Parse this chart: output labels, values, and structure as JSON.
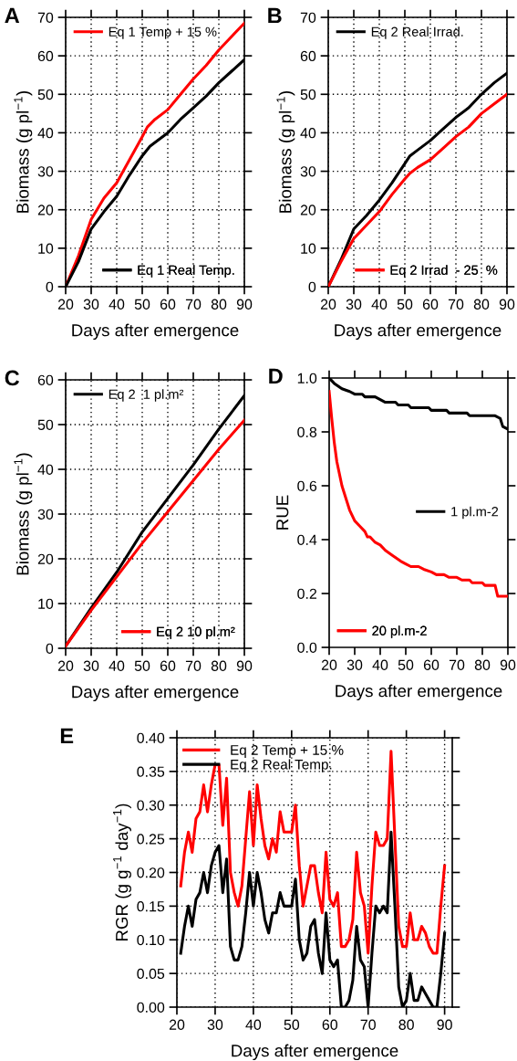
{
  "chart_data": [
    {
      "type": "line",
      "title": "A",
      "xlabel": "Days after emergence",
      "ylabel": "Biomass (g pl$^{−1}$)",
      "xlim": [
        20,
        90
      ],
      "ylim": [
        0,
        70
      ],
      "xticks": [
        20,
        30,
        40,
        50,
        60,
        70,
        80,
        90
      ],
      "yticks": [
        0,
        10,
        20,
        30,
        40,
        50,
        60,
        70
      ],
      "grid": true,
      "legend": [
        "top left",
        "bottom right"
      ],
      "series": [
        {
          "name": "Eq 1 Temp + 15 %",
          "color": "#ff0000",
          "x": [
            20,
            25,
            30,
            35,
            40,
            45,
            50,
            52,
            55,
            60,
            65,
            70,
            75,
            80,
            85,
            90
          ],
          "values": [
            0,
            8,
            17.5,
            23,
            27,
            33,
            39,
            41.5,
            43.5,
            46,
            50,
            54,
            57.5,
            61.5,
            65,
            68.5
          ]
        },
        {
          "name": "Eq 1 Real Temp.",
          "color": "#000000",
          "x": [
            20,
            25,
            30,
            35,
            40,
            45,
            50,
            53,
            55,
            60,
            65,
            70,
            75,
            80,
            85,
            90
          ],
          "values": [
            0,
            6.5,
            15,
            19.5,
            23.5,
            29,
            34,
            36.5,
            37.5,
            40,
            43.5,
            46.5,
            49.5,
            53,
            56,
            59
          ]
        }
      ]
    },
    {
      "type": "line",
      "title": "B",
      "xlabel": "Days after emergence",
      "ylabel": "Biomass (g pl$^{−1}$)",
      "xlim": [
        20,
        90
      ],
      "ylim": [
        0,
        70
      ],
      "xticks": [
        20,
        30,
        40,
        50,
        60,
        70,
        80,
        90
      ],
      "yticks": [
        0,
        10,
        20,
        30,
        40,
        50,
        60,
        70
      ],
      "grid": true,
      "legend": [
        "top left",
        "bottom right"
      ],
      "series": [
        {
          "name": "Eq 2 Real Irrad.",
          "color": "#000000",
          "x": [
            20,
            25,
            30,
            35,
            40,
            45,
            50,
            52,
            55,
            60,
            65,
            70,
            75,
            80,
            85,
            90
          ],
          "values": [
            0,
            7,
            15,
            18.5,
            22.5,
            27,
            32,
            34,
            35.5,
            38,
            41,
            44,
            46.5,
            50,
            53,
            55.5
          ]
        },
        {
          "name": "Eq 2 Irrad  - 25  %",
          "color": "#ff0000",
          "x": [
            20,
            25,
            30,
            35,
            40,
            45,
            50,
            52,
            55,
            60,
            65,
            70,
            75,
            80,
            85,
            90
          ],
          "values": [
            0,
            6.5,
            12.5,
            16,
            19.5,
            24,
            28,
            29.5,
            31,
            33,
            36,
            39,
            41.5,
            45,
            47.5,
            50
          ]
        }
      ]
    },
    {
      "type": "line",
      "title": "C",
      "xlabel": "Days after emergence",
      "ylabel": "Biomass (g pl$^{−1}$)",
      "xlim": [
        20,
        90
      ],
      "ylim": [
        0,
        60
      ],
      "xticks": [
        20,
        30,
        40,
        50,
        60,
        70,
        80,
        90
      ],
      "yticks": [
        0,
        10,
        20,
        30,
        40,
        50,
        60
      ],
      "grid": true,
      "legend": [
        "top left",
        "bottom right"
      ],
      "series": [
        {
          "name": "Eq 2  1 pl.m²",
          "color": "#000000",
          "x": [
            20,
            30,
            40,
            50,
            60,
            70,
            80,
            90
          ],
          "values": [
            0.5,
            9,
            17,
            26,
            33.5,
            41,
            49,
            56.5
          ]
        },
        {
          "name": "Eq 2 10 pl.m²",
          "color": "#ff0000",
          "x": [
            20,
            30,
            40,
            50,
            60,
            70,
            80,
            90
          ],
          "values": [
            0.5,
            8.5,
            16,
            23.5,
            30.5,
            37.5,
            44.5,
            51
          ]
        }
      ]
    },
    {
      "type": "line",
      "title": "D",
      "xlabel": "Days after emergence",
      "ylabel": "RUE",
      "xlim": [
        20,
        90
      ],
      "ylim": [
        0,
        1
      ],
      "xticks": [
        20,
        30,
        40,
        50,
        60,
        70,
        80,
        90
      ],
      "yticks": [
        {
          "value": 0,
          "label": "0.0"
        },
        0.2,
        0.4,
        0.6,
        0.8,
        {
          "value": 1,
          "label": "1.0"
        }
      ],
      "legend": [
        "center right",
        "bottom left"
      ],
      "series": [
        {
          "name": "1 pl.m-2",
          "color": "#000000",
          "x": [
            20,
            22,
            25,
            28,
            30,
            33,
            34,
            38,
            40,
            42,
            46,
            47,
            51,
            52,
            59,
            60,
            66,
            67,
            74,
            75,
            85,
            87,
            88,
            90
          ],
          "values": [
            1.0,
            0.98,
            0.96,
            0.95,
            0.94,
            0.94,
            0.93,
            0.93,
            0.92,
            0.91,
            0.91,
            0.9,
            0.9,
            0.89,
            0.89,
            0.88,
            0.88,
            0.87,
            0.87,
            0.86,
            0.86,
            0.85,
            0.82,
            0.81
          ]
        },
        {
          "name": "20 pl.m-2",
          "color": "#ff0000",
          "x": [
            20,
            21,
            22,
            23,
            25,
            27,
            28,
            30,
            32,
            34,
            35,
            36,
            38,
            40,
            42,
            45,
            48,
            50,
            52,
            55,
            57,
            60,
            62,
            65,
            67,
            70,
            72,
            75,
            76,
            80,
            81,
            85,
            86,
            90
          ],
          "values": [
            0.95,
            0.85,
            0.76,
            0.69,
            0.6,
            0.54,
            0.51,
            0.47,
            0.45,
            0.43,
            0.41,
            0.41,
            0.39,
            0.38,
            0.36,
            0.34,
            0.32,
            0.31,
            0.3,
            0.3,
            0.29,
            0.28,
            0.27,
            0.27,
            0.26,
            0.26,
            0.25,
            0.25,
            0.24,
            0.24,
            0.23,
            0.23,
            0.19,
            0.19
          ]
        }
      ]
    },
    {
      "type": "line",
      "title": "E",
      "xlabel": "Days after emergence",
      "ylabel": "RGR (g g$^{−1}$ day$^{−1}$)",
      "xlim": [
        20,
        92
      ],
      "ylim": [
        0,
        0.4
      ],
      "xticks": [
        20,
        30,
        40,
        50,
        60,
        70,
        80,
        90
      ],
      "yticks": [
        {
          "value": 0,
          "label": "0.00"
        },
        {
          "value": 0.05,
          "label": "0.05"
        },
        {
          "value": 0.1,
          "label": "0.10"
        },
        {
          "value": 0.15,
          "label": "0.15"
        },
        {
          "value": 0.2,
          "label": "0.20"
        },
        {
          "value": 0.25,
          "label": "0.25"
        },
        {
          "value": 0.3,
          "label": "0.30"
        },
        {
          "value": 0.35,
          "label": "0.35"
        },
        {
          "value": 0.4,
          "label": "0.40"
        }
      ],
      "grid": true,
      "legend": "top left",
      "x": [
        21,
        22,
        23,
        24,
        25,
        26,
        27,
        28,
        29,
        30,
        31,
        32,
        33,
        34,
        35,
        36,
        37,
        38,
        39,
        40,
        41,
        42,
        43,
        44,
        45,
        46,
        47,
        48,
        49,
        50,
        51,
        52,
        53,
        54,
        55,
        56,
        57,
        58,
        59,
        60,
        61,
        62,
        63,
        64,
        65,
        66,
        67,
        68,
        69,
        70,
        71,
        72,
        73,
        74,
        75,
        76,
        77,
        78,
        79,
        80,
        81,
        82,
        83,
        84,
        85,
        86,
        87,
        88,
        89,
        90
      ],
      "series": [
        {
          "name": "Eq 2 Temp + 15 %",
          "color": "#ff0000",
          "values": [
            0.18,
            0.23,
            0.26,
            0.23,
            0.28,
            0.29,
            0.33,
            0.29,
            0.33,
            0.36,
            0.36,
            0.27,
            0.34,
            0.2,
            0.17,
            0.15,
            0.18,
            0.25,
            0.32,
            0.24,
            0.33,
            0.28,
            0.24,
            0.22,
            0.25,
            0.23,
            0.29,
            0.26,
            0.26,
            0.26,
            0.3,
            0.21,
            0.15,
            0.18,
            0.21,
            0.21,
            0.17,
            0.14,
            0.23,
            0.16,
            0.15,
            0.17,
            0.09,
            0.09,
            0.1,
            0.13,
            0.23,
            0.17,
            0.15,
            0.08,
            0.18,
            0.26,
            0.24,
            0.24,
            0.25,
            0.38,
            0.25,
            0.12,
            0.09,
            0.09,
            0.14,
            0.1,
            0.1,
            0.12,
            0.11,
            0.09,
            0.08,
            0.08,
            0.15,
            0.21
          ]
        },
        {
          "name": "Eq 2 Real Temp.",
          "color": "#000000",
          "values": [
            0.08,
            0.12,
            0.15,
            0.12,
            0.16,
            0.17,
            0.2,
            0.17,
            0.21,
            0.23,
            0.24,
            0.17,
            0.22,
            0.09,
            0.07,
            0.07,
            0.09,
            0.14,
            0.2,
            0.15,
            0.2,
            0.17,
            0.13,
            0.11,
            0.14,
            0.14,
            0.17,
            0.15,
            0.15,
            0.15,
            0.19,
            0.1,
            0.07,
            0.08,
            0.12,
            0.13,
            0.08,
            0.05,
            0.14,
            0.07,
            0.06,
            0.07,
            0.0,
            0.0,
            0.01,
            0.04,
            0.12,
            0.07,
            0.06,
            0.0,
            0.08,
            0.15,
            0.14,
            0.15,
            0.14,
            0.26,
            0.15,
            0.03,
            0.0,
            0.01,
            0.05,
            0.01,
            0.01,
            0.03,
            0.02,
            0.01,
            0.0,
            0.0,
            0.05,
            0.11
          ]
        }
      ]
    }
  ]
}
